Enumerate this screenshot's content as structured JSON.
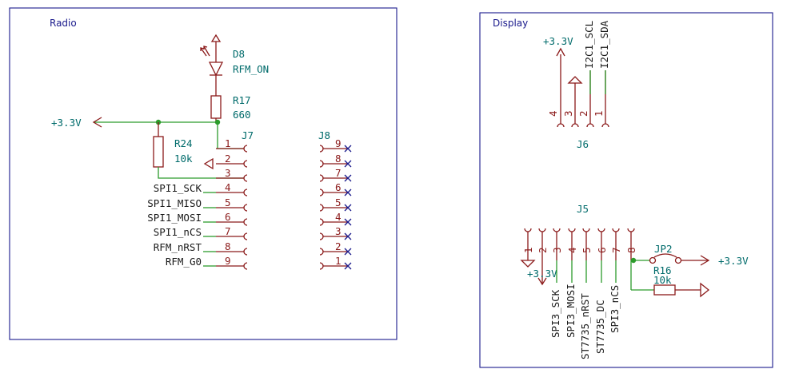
{
  "sheets": {
    "radio": "Radio",
    "display": "Display"
  },
  "power": {
    "v33": "+3.3V"
  },
  "radio": {
    "d8": {
      "ref": "D8",
      "value": "RFM_ON"
    },
    "r17": {
      "ref": "R17",
      "value": "660"
    },
    "r24": {
      "ref": "R24",
      "value": "10k"
    },
    "j7": {
      "ref": "J7",
      "pins": [
        "1",
        "2",
        "3",
        "4",
        "5",
        "6",
        "7",
        "8",
        "9"
      ],
      "signals": [
        "SPI1_SCK",
        "SPI1_MISO",
        "SPI1_MOSI",
        "SPI1_nCS",
        "RFM_nRST",
        "RFM_G0"
      ]
    },
    "j8": {
      "ref": "J8",
      "pins": [
        "9",
        "8",
        "7",
        "6",
        "5",
        "4",
        "3",
        "2",
        "1"
      ]
    }
  },
  "display": {
    "j6": {
      "ref": "J6",
      "pins": [
        "4",
        "3",
        "2",
        "1"
      ],
      "signals": [
        "I2C1_SCL",
        "I2C1_SDA"
      ]
    },
    "j5": {
      "ref": "J5",
      "pins": [
        "1",
        "2",
        "3",
        "4",
        "5",
        "6",
        "7",
        "8"
      ],
      "signals": [
        "SPI3_SCK",
        "SPI3_MOSI",
        "ST7735_nRST",
        "ST7735_DC",
        "SPI3_nCS"
      ]
    },
    "jp2": {
      "ref": "JP2"
    },
    "r16": {
      "ref": "R16",
      "value": "10k"
    }
  }
}
